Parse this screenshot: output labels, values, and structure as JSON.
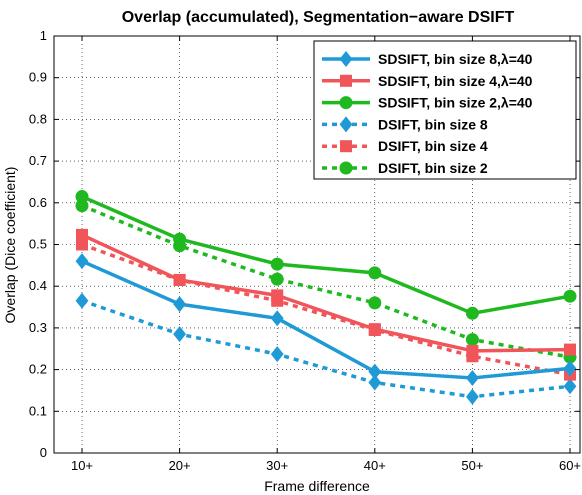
{
  "chart_data": {
    "type": "line",
    "title": "Overlap (accumulated), Segmentation−aware DSIFT",
    "xlabel": "Frame difference",
    "ylabel": "Overlap (Dice coefficient)",
    "categories": [
      "10+",
      "20+",
      "30+",
      "40+",
      "50+",
      "60+"
    ],
    "ylim": [
      0,
      1
    ],
    "yticks": [
      "0",
      "0.1",
      "0.2",
      "0.3",
      "0.4",
      "0.5",
      "0.6",
      "0.7",
      "0.8",
      "0.9",
      "1"
    ],
    "grid": true,
    "legend_position": "top-right",
    "series": [
      {
        "name": "SDSIFT, bin size 8,λ=40",
        "color": "#1f9ad6",
        "style": "solid",
        "marker": "diamond",
        "values": [
          0.46,
          0.357,
          0.323,
          0.195,
          0.18,
          0.203
        ]
      },
      {
        "name": "SDSIFT, bin size 4,λ=40",
        "color": "#f0555a",
        "style": "solid",
        "marker": "square",
        "values": [
          0.523,
          0.415,
          0.378,
          0.297,
          0.245,
          0.248
        ]
      },
      {
        "name": "SDSIFT, bin size 2,λ=40",
        "color": "#1fb91f",
        "style": "solid",
        "marker": "circle",
        "values": [
          0.615,
          0.513,
          0.453,
          0.432,
          0.335,
          0.376
        ]
      },
      {
        "name": "DSIFT, bin size 8",
        "color": "#1f9ad6",
        "style": "dotted",
        "marker": "diamond",
        "values": [
          0.365,
          0.285,
          0.237,
          0.169,
          0.135,
          0.16
        ]
      },
      {
        "name": "DSIFT, bin size 4",
        "color": "#f0555a",
        "style": "dotted",
        "marker": "square",
        "values": [
          0.5,
          0.415,
          0.365,
          0.295,
          0.232,
          0.188
        ]
      },
      {
        "name": "DSIFT, bin size 2",
        "color": "#1fb91f",
        "style": "dotted",
        "marker": "circle",
        "values": [
          0.593,
          0.497,
          0.417,
          0.36,
          0.272,
          0.23
        ]
      }
    ]
  }
}
